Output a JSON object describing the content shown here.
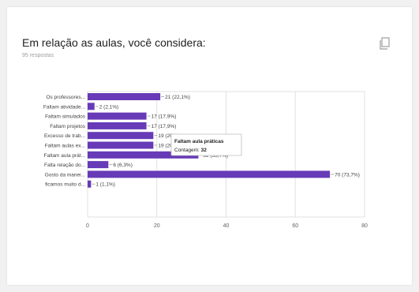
{
  "header": {
    "title": "Em relação as aulas, você considera:",
    "subtitle": "95 respostas"
  },
  "icons": {
    "copy": "copy-icon"
  },
  "colors": {
    "bar": "#673ab7",
    "grid": "#e0e0e0",
    "text": "#424242",
    "tooltip_border": "#bdbdbd"
  },
  "tooltip": {
    "title": "Faltam aula práticas",
    "count_label": "Contagem:",
    "count_value": "32"
  },
  "chart_data": {
    "type": "bar",
    "orientation": "horizontal",
    "categories": [
      "Os professores...",
      "Faltam atividade...",
      "Faltam simulados",
      "Faltam projetos",
      "Excesso de trab...",
      "Faltam aulas ex...",
      "Faltam aula prát...",
      "Falta relação do...",
      "Gosto da manei...",
      "ficamos muito d..."
    ],
    "values": [
      21,
      2,
      17,
      17,
      19,
      19,
      32,
      6,
      70,
      1
    ],
    "data_labels": [
      "21 (22,1%)",
      "2 (2,1%)",
      "17 (17,9%)",
      "17 (17,9%)",
      "19 (20%)",
      "19 (20%)",
      "32 (33,7%)",
      "6 (6,3%)",
      "70 (73,7%)",
      "1 (1,1%)"
    ],
    "xlim": [
      0,
      80
    ],
    "x_ticks": [
      "0",
      "20",
      "40",
      "60",
      "80"
    ],
    "grid": true,
    "title": "Em relação as aulas, você considera:",
    "xlabel": "",
    "ylabel": ""
  }
}
